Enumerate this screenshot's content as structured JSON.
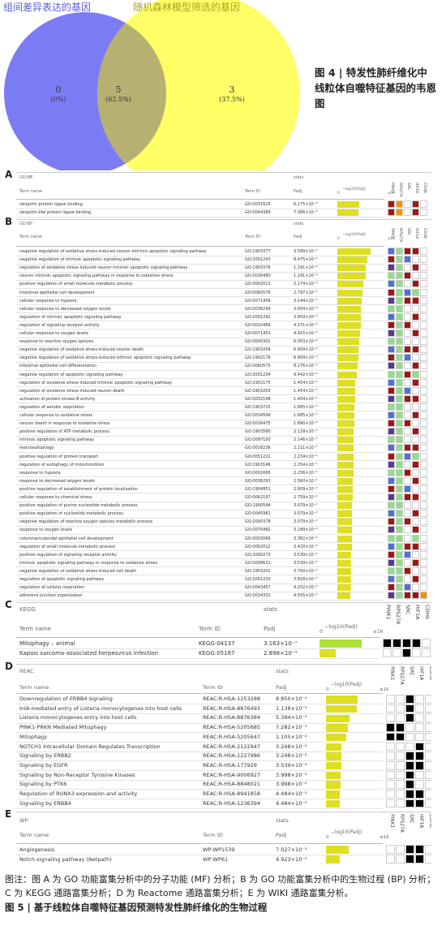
{
  "venn": {
    "left_label": "组间差异表达的基因",
    "right_label": "随机森林模型筛选的基因",
    "left_count": "0",
    "left_pct": "(0%)",
    "overlap_count": "5",
    "overlap_pct": "(62.5%)",
    "right_count": "3",
    "right_pct": "(37.5%)",
    "left_color": "#7b7cf4",
    "right_color": "#ffff66",
    "overlap_color": "#b7b171"
  },
  "fig4_caption": "图 4 | 特发性肺纤维化中线粒体自噬特征基因的韦恩图",
  "headers": {
    "term_name": "Term name",
    "term_id": "Term ID",
    "padj": "Padj",
    "stats": "stats",
    "log_label": "−log10(Padj)",
    "scale_start": "0",
    "scale_end": "≤16"
  },
  "genes": [
    "PINK1",
    "RPS27A",
    "SRC",
    "HIF1A",
    "CDH6"
  ],
  "panel_A": {
    "letter": "A",
    "source": "GO:MF",
    "rows": [
      {
        "name": "ubiquitin protein ligase binding",
        "id": "GO:0031625",
        "p": "6.175×10⁻³"
      },
      {
        "name": "ubiquitin-like protein ligase binding",
        "id": "GO:0044389",
        "p": "7.366×10⁻³"
      }
    ]
  },
  "panel_B": {
    "letter": "B",
    "source": "GO:BP",
    "rows": [
      {
        "name": "negative regulation of oxidative stress-induced neuron intrinsic apoptotic signaling pathway",
        "id": "GO:1903377",
        "p": "3.589×10⁻⁴"
      },
      {
        "name": "negative regulation of intrinsic apoptotic signaling pathway",
        "id": "GO:2001243",
        "p": "8.475×10⁻⁴"
      },
      {
        "name": "regulation of oxidative stress-induced neuron intrinsic apoptotic signaling pathway",
        "id": "GO:1903376",
        "p": "1.291×10⁻³"
      },
      {
        "name": "neuron intrinsic apoptotic signaling pathway in response to oxidative stress",
        "id": "GO:0036480",
        "p": "1.291×10⁻³"
      },
      {
        "name": "positive regulation of small molecule metabolic process",
        "id": "GO:0062013",
        "p": "2.174×10⁻³"
      },
      {
        "name": "intestinal epithelial cell development",
        "id": "GO:0060576",
        "p": "2.797×10⁻³"
      },
      {
        "name": "cellular response to hypoxia",
        "id": "GO:0071456",
        "p": "3.144×10⁻³"
      },
      {
        "name": "cellular response to decreased oxygen levels",
        "id": "GO:0036294",
        "p": "3.654×10⁻³"
      },
      {
        "name": "regulation of intrinsic apoptotic signaling pathway",
        "id": "GO:2001242",
        "p": "3.859×10⁻³"
      },
      {
        "name": "regulation of signaling receptor activity",
        "id": "GO:0010469",
        "p": "4.071×10⁻³"
      },
      {
        "name": "cellular response to oxygen levels",
        "id": "GO:0071453",
        "p": "4.915×10⁻³"
      },
      {
        "name": "response to reactive oxygen species",
        "id": "GO:0000302",
        "p": "6.053×10⁻³"
      },
      {
        "name": "negative regulation of oxidative stress-induced neuron death",
        "id": "GO:1903204",
        "p": "6.809×10⁻³"
      },
      {
        "name": "negative regulation of oxidative stress-induced intrinsic apoptotic signaling pathway",
        "id": "GO:1902176",
        "p": "6.809×10⁻³"
      },
      {
        "name": "intestinal epithelial cell differentiation",
        "id": "GO:0060575",
        "p": "8.276×10⁻³"
      },
      {
        "name": "negative regulation of apoptotic signaling pathway",
        "id": "GO:2001234",
        "p": "9.442×10⁻³"
      },
      {
        "name": "regulation of oxidative stress-induced intrinsic apoptotic signaling pathway",
        "id": "GO:1902175",
        "p": "1.454×10⁻²"
      },
      {
        "name": "regulation of oxidative stress-induced neuron death",
        "id": "GO:1903203",
        "p": "1.454×10⁻²"
      },
      {
        "name": "activation of protein kinase B activity",
        "id": "GO:0032148",
        "p": "1.454×10⁻²"
      },
      {
        "name": "regulation of aerobic respiration",
        "id": "GO:1903715",
        "p": "1.665×10⁻²"
      },
      {
        "name": "cellular response to oxidative stress",
        "id": "GO:0034599",
        "p": "1.685×10⁻²"
      },
      {
        "name": "neuron death in response to oxidative stress",
        "id": "GO:0036475",
        "p": "1.890×10⁻²"
      },
      {
        "name": "positive regulation of ATP metabolic process",
        "id": "GO:1903580",
        "p": "2.129×10⁻²"
      },
      {
        "name": "intrinsic apoptotic signaling pathway",
        "id": "GO:0097193",
        "p": "2.146×10⁻²"
      },
      {
        "name": "macroautophagy",
        "id": "GO:0016236",
        "p": "2.211×10⁻²"
      },
      {
        "name": "positive regulation of protein transport",
        "id": "GO:0051222",
        "p": "2.234×10⁻²"
      },
      {
        "name": "regulation of autophagy of mitochondrion",
        "id": "GO:1903146",
        "p": "2.254×10⁻²"
      },
      {
        "name": "response to hypoxia",
        "id": "GO:0001666",
        "p": "2.256×10⁻²"
      },
      {
        "name": "response to decreased oxygen levels",
        "id": "GO:0036293",
        "p": "2.560×10⁻²"
      },
      {
        "name": "positive regulation of establishment of protein localization",
        "id": "GO:1904951",
        "p": "2.609×10⁻²"
      },
      {
        "name": "cellular response to chemical stress",
        "id": "GO:0062197",
        "p": "2.759×10⁻²"
      },
      {
        "name": "positive regulation of purine nucleotide metabolic process",
        "id": "GO:1900544",
        "p": "3.079×10⁻²"
      },
      {
        "name": "positive regulation of nucleotide metabolic process",
        "id": "GO:0045981",
        "p": "3.079×10⁻²"
      },
      {
        "name": "negative regulation of reactive oxygen species metabolic process",
        "id": "GO:2000378",
        "p": "3.079×10⁻²"
      },
      {
        "name": "response to oxygen levels",
        "id": "GO:0070482",
        "p": "3.189×10⁻²"
      },
      {
        "name": "columnar/cuboidal epithelial cell development",
        "id": "GO:0002066",
        "p": "3.382×10⁻²"
      },
      {
        "name": "regulation of small molecule metabolic process",
        "id": "GO:0062012",
        "p": "3.420×10⁻²"
      },
      {
        "name": "positive regulation of signaling receptor activity",
        "id": "GO:2000273",
        "p": "3.539×10⁻²"
      },
      {
        "name": "intrinsic apoptotic signaling pathway in response to oxidative stress",
        "id": "GO:0008631",
        "p": "3.539×10⁻²"
      },
      {
        "name": "negative regulation of oxidative stress-induced cell death",
        "id": "GO:1903202",
        "p": "3.700×10⁻²"
      },
      {
        "name": "regulation of apoptotic signaling pathway",
        "id": "GO:2001233",
        "p": "3.818×10⁻²"
      },
      {
        "name": "regulation of cellular respiration",
        "id": "GO:0043457",
        "p": "4.202×10⁻²"
      },
      {
        "name": "adherens junction organization",
        "id": "GO:0034332",
        "p": "4.555×10⁻²"
      }
    ]
  },
  "panel_C": {
    "letter": "C",
    "source": "KEGG",
    "rows": [
      {
        "name": "Mitophagy – animal",
        "id": "KEGG:04137",
        "p": "3.163×10⁻⁷"
      },
      {
        "name": "Kaposi sarcoma-associated herpesvirus infection",
        "id": "KEGG:05167",
        "p": "2.898×10⁻³"
      }
    ]
  },
  "panel_D": {
    "letter": "D",
    "source": "REAC",
    "rows": [
      {
        "name": "Downregulation of ERBB4 signaling",
        "id": "REAC:R-HSA-1253288",
        "p": "8.850×10⁻⁴"
      },
      {
        "name": "InlA-mediated entry of Listeria monocytogenes into host cells",
        "id": "REAC:R-HSA-8876493",
        "p": "1.138×10⁻³"
      },
      {
        "name": "Listeria monocytogenes entry into host cells",
        "id": "REAC:R-HSA-8876384",
        "p": "5.394×10⁻³"
      },
      {
        "name": "PINK1-PRKN Mediated Mitophagy",
        "id": "REAC:R-HSA-5205685",
        "p": "7.282×10⁻³"
      },
      {
        "name": "Mitophagy",
        "id": "REAC:R-HSA-5205647",
        "p": "1.105×10⁻²"
      },
      {
        "name": "NOTCH1 Intracellular Domain Regulates Transcription",
        "id": "REAC:R-HSA-2122947",
        "p": "3.248×10⁻²"
      },
      {
        "name": "Signaling by ERBB2",
        "id": "REAC:R-HSA-1227986",
        "p": "3.248×10⁻²"
      },
      {
        "name": "Signaling by EGFR",
        "id": "REAC:R-HSA-177929",
        "p": "3.539×10⁻²"
      },
      {
        "name": "Signaling by Non-Receptor Tyrosine Kinases",
        "id": "REAC:R-HSA-9006927",
        "p": "3.998×10⁻²"
      },
      {
        "name": "Signaling by PTK6",
        "id": "REAC:R-HSA-8848021",
        "p": "3.998×10⁻²"
      },
      {
        "name": "Regulation of RUNX3 expression and activity",
        "id": "REAC:R-HSA-8941858",
        "p": "4.484×10⁻²"
      },
      {
        "name": "Signaling by ERBB4",
        "id": "REAC:R-HSA-1236394",
        "p": "4.484×10⁻²"
      }
    ]
  },
  "panel_E": {
    "letter": "E",
    "source": "WP",
    "rows": [
      {
        "name": "Angiogenesis",
        "id": "WP:WP1539",
        "p": "7.027×10⁻³"
      },
      {
        "name": "Notch signaling pathway (Netpath)",
        "id": "WP:WP61",
        "p": "4.923×10⁻²"
      }
    ]
  },
  "colors": {
    "bar": "#dede22",
    "bar_strong": "#aee036",
    "dark_red": "#a01616",
    "blue": "#4f72d6",
    "green": "#8fdf87",
    "purple": "#5a3a8f",
    "orange": "#f39200",
    "black": "#000000"
  },
  "fig5_legend": "图注：图 A 为 GO 功能富集分析中的分子功能 (MF) 分析；B 为 GO 功能富集分析中的生物过程 (BP) 分析；C 为 KEGG 通路富集分析；D 为 Reactome 通路富集分析；E 为 WIKI 通路富集分析。",
  "fig5_caption": "图 5 | 基于线粒体自噬特征基因预测特发性肺纤维化的生物过程"
}
